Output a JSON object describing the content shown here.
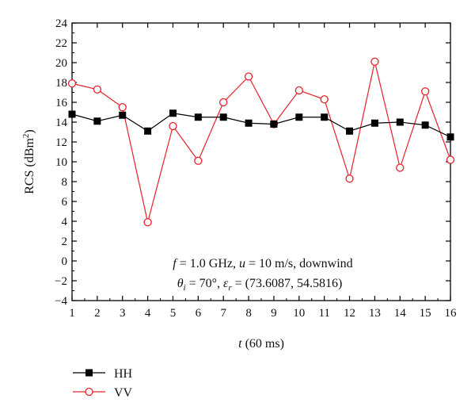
{
  "chart_data": {
    "type": "line",
    "xlabel_var": "t",
    "xlabel_unit": "(60 ms)",
    "ylabel": "RCS (dBm",
    "ylabel_sup": "2",
    "ylabel_close": ")",
    "xlim": [
      1,
      16
    ],
    "ylim": [
      -4,
      24
    ],
    "x_ticks": [
      "1",
      "2",
      "3",
      "4",
      "5",
      "6",
      "7",
      "8",
      "9",
      "10",
      "11",
      "12",
      "13",
      "14",
      "15",
      "16"
    ],
    "y_ticks": [
      "−4",
      "−2",
      "0",
      "2",
      "4",
      "6",
      "8",
      "10",
      "12",
      "14",
      "16",
      "18",
      "20",
      "22",
      "24"
    ],
    "x": [
      1,
      2,
      3,
      4,
      5,
      6,
      7,
      8,
      9,
      10,
      11,
      12,
      13,
      14,
      15,
      16
    ],
    "series": [
      {
        "name": "HH",
        "color": "#000000",
        "marker": "filled-square",
        "values": [
          14.8,
          14.1,
          14.7,
          13.1,
          14.9,
          14.5,
          14.5,
          13.9,
          13.8,
          14.5,
          14.5,
          13.1,
          13.9,
          14.0,
          13.7,
          12.5
        ]
      },
      {
        "name": "VV",
        "color": "#e8202a",
        "marker": "open-circle",
        "values": [
          17.9,
          17.3,
          15.5,
          3.9,
          13.6,
          10.1,
          16.0,
          18.6,
          13.8,
          17.2,
          16.3,
          8.3,
          20.1,
          9.4,
          17.1,
          10.2
        ]
      }
    ],
    "annotation": {
      "line1": {
        "f_var": "f",
        "f_text": " = 1.0 GHz, ",
        "u_var": "u",
        "u_text": " = 10 m/s, downwind"
      },
      "line2": {
        "theta": "θ",
        "theta_sub": "i",
        "theta_text": " = 70°, ",
        "eps": "ε",
        "eps_sub": "r",
        "eps_text": " = (73.6087, 54.5816)"
      }
    },
    "legend_position": "bottom-left",
    "grid": false
  }
}
